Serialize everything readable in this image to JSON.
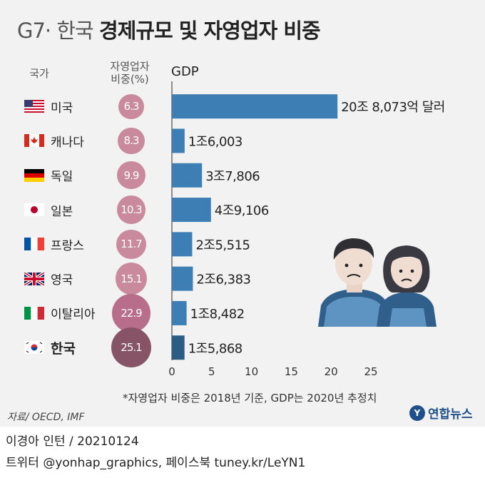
{
  "title": {
    "prefix": "G7· 한국",
    "main": "경제규모 및 자영업자 비중"
  },
  "headers": {
    "country": "국가",
    "self_employed": "자영업자\n비중(%)",
    "gdp": "GDP"
  },
  "colors": {
    "bar": "#3d7fb5",
    "bar_highlight": "#2a5d86",
    "bubble_light": "#c98a9e",
    "bubble_mid": "#b86e8a",
    "bubble_dark": "#875467"
  },
  "chart_data": {
    "type": "bar",
    "orientation": "horizontal",
    "categories": [
      "미국",
      "캐나다",
      "독일",
      "일본",
      "프랑스",
      "영국",
      "이탈리아",
      "한국"
    ],
    "series": [
      {
        "name": "GDP",
        "values": [
          20.8073,
          1.6003,
          3.7806,
          4.9106,
          2.5515,
          2.6383,
          1.8482,
          1.5868
        ]
      },
      {
        "name": "자영업자 비중(%)",
        "values": [
          6.3,
          8.3,
          9.9,
          10.3,
          11.7,
          15.1,
          22.9,
          25.1
        ]
      }
    ],
    "value_labels": [
      "20조 8,073억 달러",
      "1조6,003",
      "3조7,806",
      "4조9,106",
      "2조5,515",
      "2조6,383",
      "1조8,482",
      "1조5,868"
    ],
    "bubble_labels": [
      "6.3",
      "8.3",
      "9.9",
      "10.3",
      "11.7",
      "15.1",
      "22.9",
      "25.1"
    ],
    "xlim": [
      0,
      25
    ],
    "xticks": [
      0,
      5,
      10,
      15,
      20,
      25
    ],
    "highlight": "한국"
  },
  "flags": [
    "us-flag-icon",
    "canada-flag-icon",
    "germany-flag-icon",
    "japan-flag-icon",
    "france-flag-icon",
    "uk-flag-icon",
    "italy-flag-icon",
    "korea-flag-icon"
  ],
  "note": "*자영업자 비중은 2018년 기준, GDP는 2020년 추정치",
  "source": "자료/ OECD, IMF",
  "logo": {
    "mark": "Y",
    "text": "연합뉴스"
  },
  "credits": {
    "line1": "이경아 인턴 /  20210124",
    "line2": "트위터 @yonhap_graphics, 페이스북 tuney.kr/LeYN1"
  }
}
